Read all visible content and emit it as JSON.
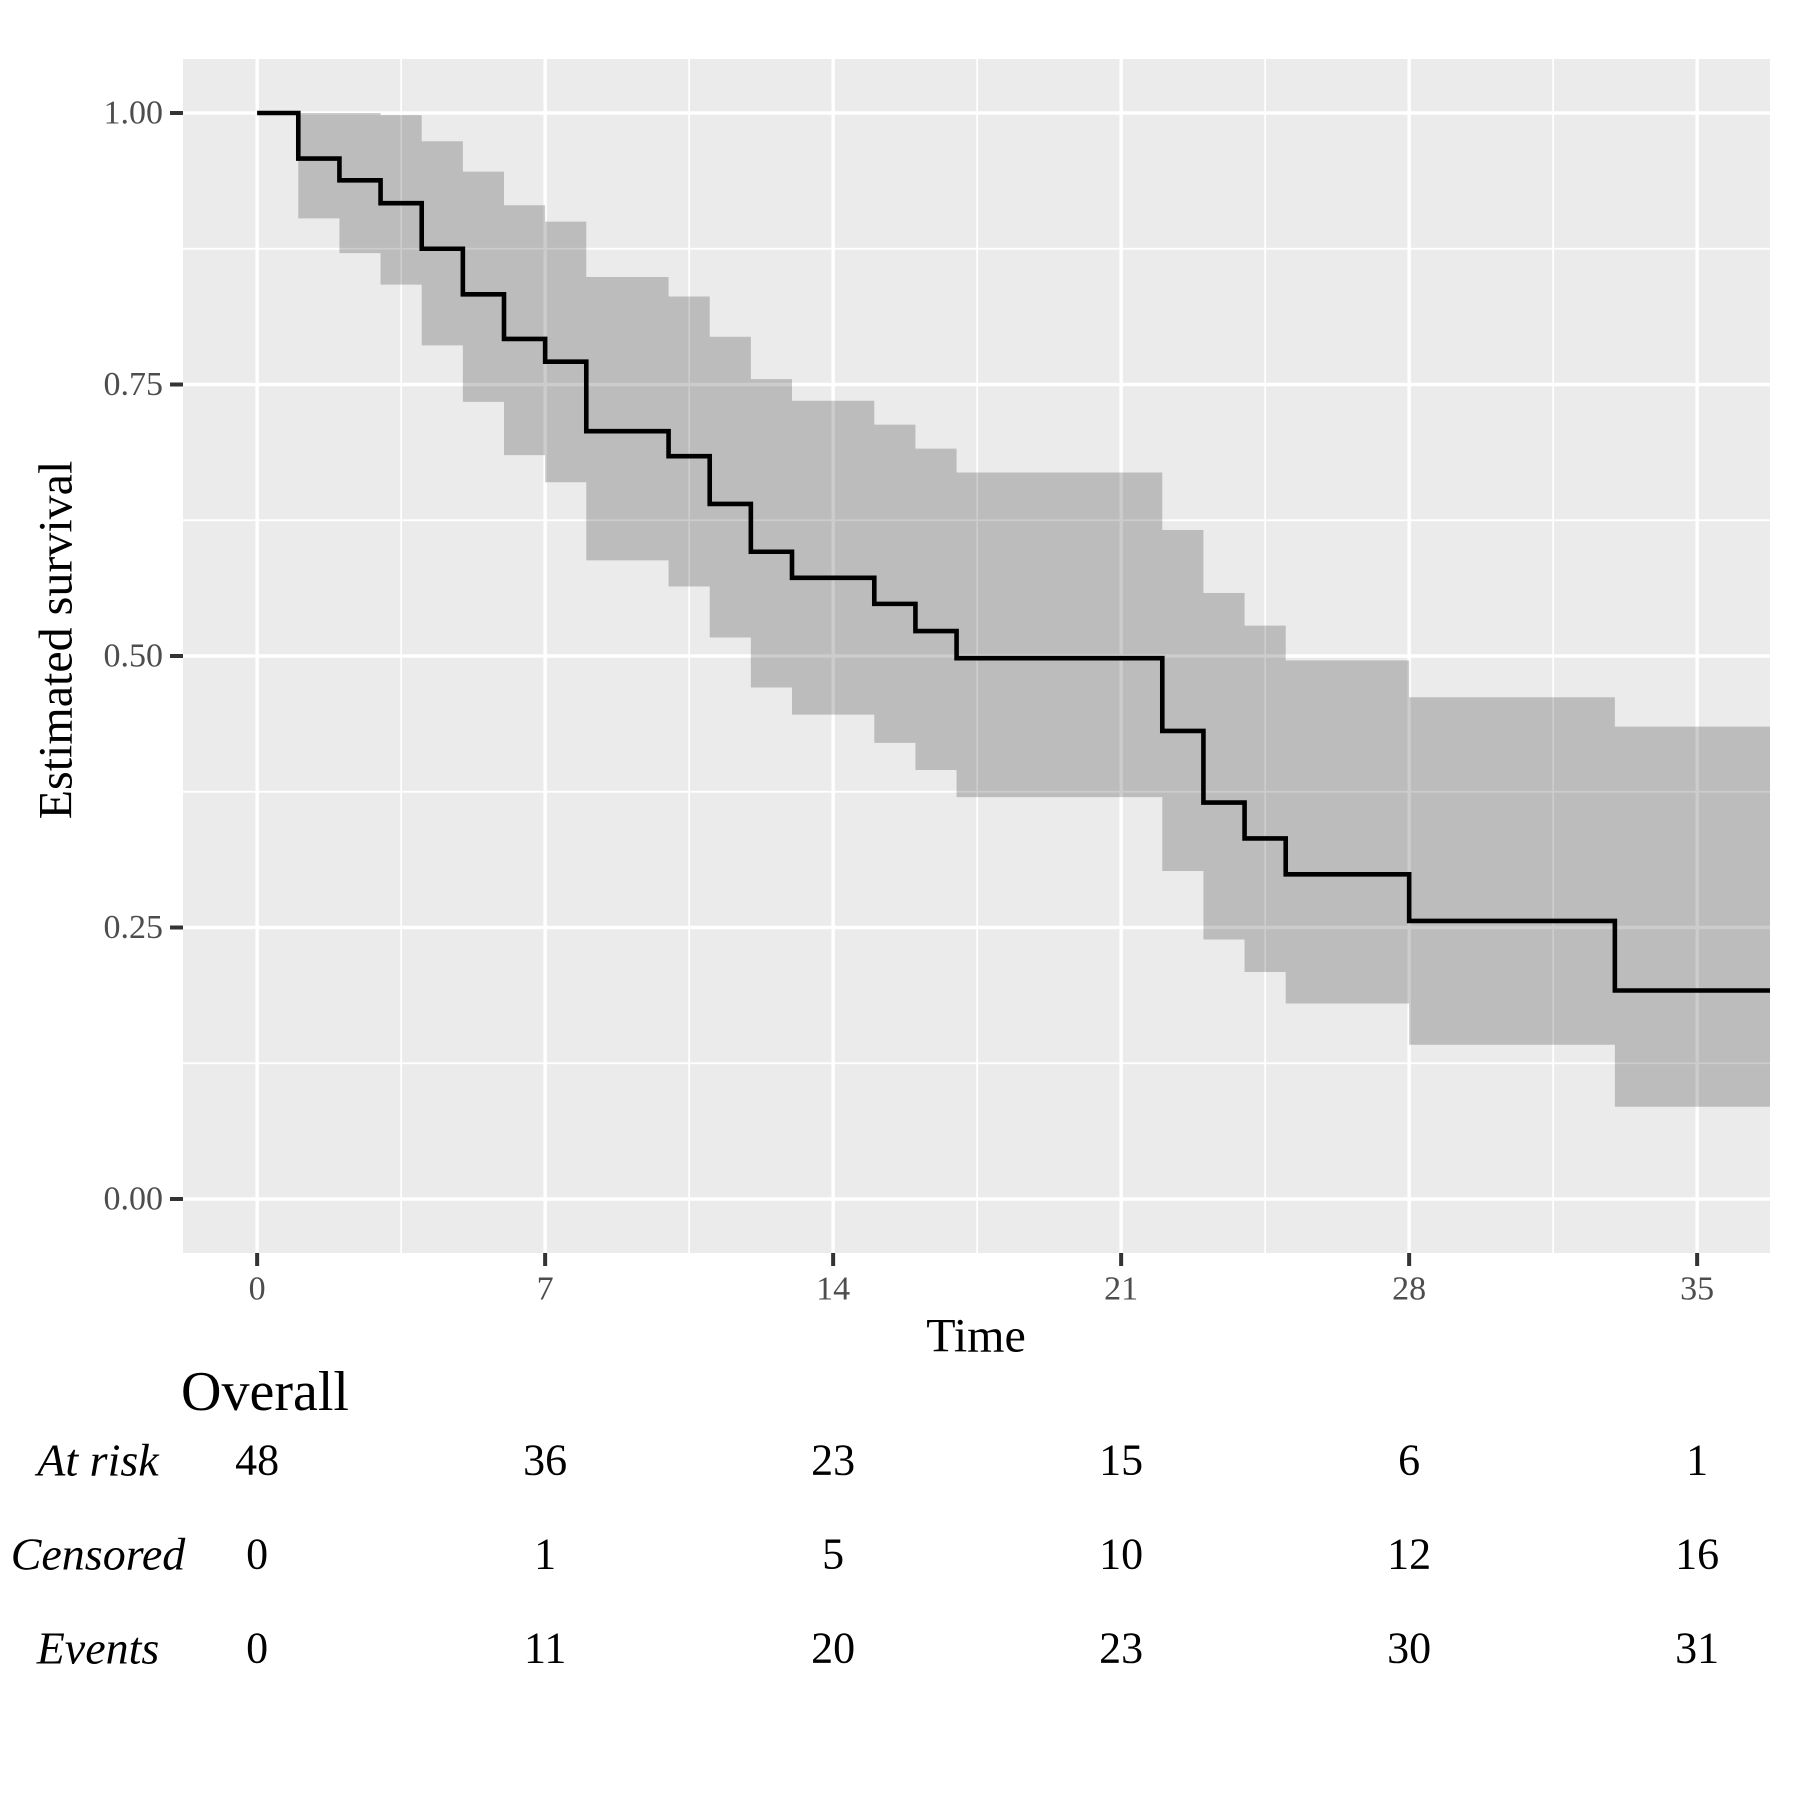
{
  "chart_data": {
    "type": "line",
    "subtype": "kaplan-meier-step-with-confidence-band",
    "title": "",
    "xlabel": "Time",
    "ylabel": "Estimated survival",
    "xlim": [
      -1.8,
      36.8
    ],
    "ylim": [
      -0.05,
      1.05
    ],
    "grid": "major-and-minor",
    "legend_position": "none",
    "x_tick_labels": [
      "0",
      "7",
      "14",
      "21",
      "28",
      "35"
    ],
    "x_tick_values": [
      0,
      7,
      14,
      21,
      28,
      35
    ],
    "x_minor_values": [
      3.5,
      10.5,
      17.5,
      24.5,
      31.5
    ],
    "y_tick_labels": [
      "0.00",
      "0.25",
      "0.50",
      "0.75",
      "1.00"
    ],
    "y_tick_values": [
      0,
      0.25,
      0.5,
      0.75,
      1
    ],
    "y_minor_values": [
      0.125,
      0.375,
      0.625,
      0.875
    ],
    "series": [
      {
        "name": "Overall",
        "times": [
          0,
          1,
          2,
          3,
          4,
          5,
          6,
          7,
          8,
          10,
          11,
          12,
          13,
          15,
          16,
          17,
          22,
          23,
          24,
          25,
          28,
          33
        ],
        "survival": [
          1.0,
          0.958,
          0.938,
          0.917,
          0.875,
          0.833,
          0.792,
          0.771,
          0.707,
          0.684,
          0.64,
          0.596,
          0.572,
          0.548,
          0.523,
          0.498,
          0.431,
          0.365,
          0.332,
          0.299,
          0.256,
          0.192
        ],
        "ci_upper": [
          1.0,
          1.0,
          1.0,
          0.998,
          0.974,
          0.946,
          0.915,
          0.9,
          0.849,
          0.831,
          0.794,
          0.755,
          0.735,
          0.713,
          0.691,
          0.669,
          0.616,
          0.558,
          0.528,
          0.496,
          0.462,
          0.435
        ],
        "ci_lower": [
          1.0,
          0.903,
          0.871,
          0.842,
          0.786,
          0.734,
          0.685,
          0.66,
          0.588,
          0.564,
          0.517,
          0.471,
          0.446,
          0.42,
          0.395,
          0.37,
          0.302,
          0.239,
          0.209,
          0.18,
          0.142,
          0.085
        ],
        "band_starts_at_time": 1
      }
    ],
    "colors": {
      "panel_background": "#EBEBEB",
      "gridline": "#FFFFFF",
      "confidence_band": "rgba(0,0,0,0.2)",
      "curve": "#000000",
      "tick_mark": "#333333",
      "tick_label": "#4D4D4D",
      "text": "#000000"
    }
  },
  "risk_table": {
    "title": "Overall",
    "times": [
      0,
      7,
      14,
      21,
      28,
      35
    ],
    "rows": [
      {
        "label": "At risk",
        "values": [
          "48",
          "36",
          "23",
          "15",
          "6",
          "1"
        ]
      },
      {
        "label": "Censored",
        "values": [
          "0",
          "1",
          "5",
          "10",
          "12",
          "16"
        ]
      },
      {
        "label": "Events",
        "values": [
          "0",
          "11",
          "20",
          "23",
          "30",
          "31"
        ]
      }
    ]
  }
}
